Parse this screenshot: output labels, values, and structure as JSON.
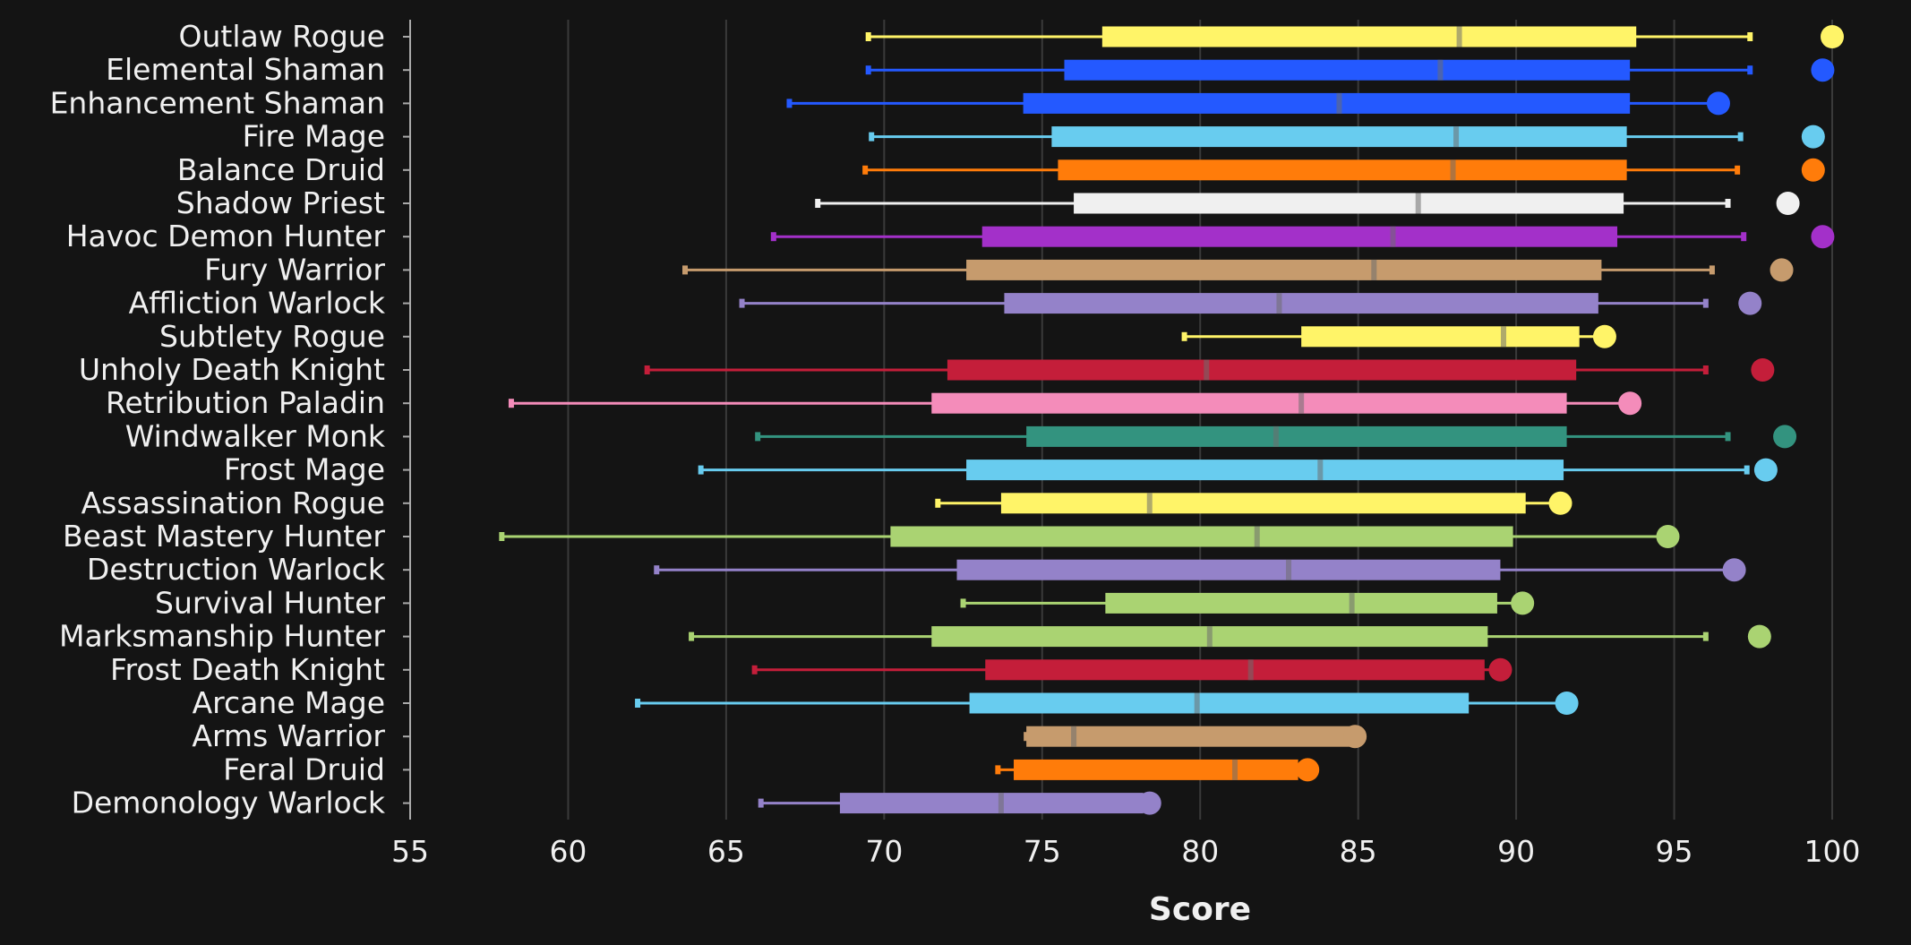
{
  "chart_data": {
    "type": "boxplot",
    "xlabel": "Score",
    "xlim": [
      55,
      100
    ],
    "xticks": [
      55,
      60,
      65,
      70,
      75,
      80,
      85,
      90,
      95,
      100
    ],
    "grid": "vertical",
    "series": [
      {
        "name": "Outlaw Rogue",
        "color": "#fff468",
        "min": 69.5,
        "q1": 76.9,
        "median": 88.2,
        "q3": 93.8,
        "max": 97.4,
        "outlier": 100.0
      },
      {
        "name": "Elemental Shaman",
        "color": "#2459ff",
        "min": 69.5,
        "q1": 75.7,
        "median": 87.6,
        "q3": 93.6,
        "max": 97.4,
        "outlier": 99.7
      },
      {
        "name": "Enhancement Shaman",
        "color": "#2459ff",
        "min": 67.0,
        "q1": 74.4,
        "median": 84.4,
        "q3": 93.6,
        "max": 96.4,
        "outlier": null
      },
      {
        "name": "Fire Mage",
        "color": "#68ccef",
        "min": 69.6,
        "q1": 75.3,
        "median": 88.1,
        "q3": 93.5,
        "max": 97.1,
        "outlier": 99.4
      },
      {
        "name": "Balance Druid",
        "color": "#ff7c0a",
        "min": 69.4,
        "q1": 75.5,
        "median": 88.0,
        "q3": 93.5,
        "max": 97.0,
        "outlier": 99.4
      },
      {
        "name": "Shadow Priest",
        "color": "#f0f0f0",
        "min": 67.9,
        "q1": 76.0,
        "median": 86.9,
        "q3": 93.4,
        "max": 96.7,
        "outlier": 98.6
      },
      {
        "name": "Havoc Demon Hunter",
        "color": "#a330c9",
        "min": 66.5,
        "q1": 73.1,
        "median": 86.1,
        "q3": 93.2,
        "max": 97.2,
        "outlier": 99.7
      },
      {
        "name": "Fury Warrior",
        "color": "#c69b6d",
        "min": 63.7,
        "q1": 72.6,
        "median": 85.5,
        "q3": 92.7,
        "max": 96.2,
        "outlier": 98.4
      },
      {
        "name": "Affliction Warlock",
        "color": "#9482c9",
        "min": 65.5,
        "q1": 73.8,
        "median": 82.5,
        "q3": 92.6,
        "max": 96.0,
        "outlier": 97.4
      },
      {
        "name": "Subtlety Rogue",
        "color": "#fff468",
        "min": 79.5,
        "q1": 83.2,
        "median": 89.6,
        "q3": 92.0,
        "max": 92.8,
        "outlier": null
      },
      {
        "name": "Unholy Death Knight",
        "color": "#c41e3a",
        "min": 62.5,
        "q1": 72.0,
        "median": 80.2,
        "q3": 91.9,
        "max": 96.0,
        "outlier": 97.8
      },
      {
        "name": "Retribution Paladin",
        "color": "#f48cba",
        "min": 58.2,
        "q1": 71.5,
        "median": 83.2,
        "q3": 91.6,
        "max": 93.6,
        "outlier": null
      },
      {
        "name": "Windwalker Monk",
        "color": "#33937f",
        "min": 66.0,
        "q1": 74.5,
        "median": 82.4,
        "q3": 91.6,
        "max": 96.7,
        "outlier": 98.5
      },
      {
        "name": "Frost Mage",
        "color": "#68ccef",
        "min": 64.2,
        "q1": 72.6,
        "median": 83.8,
        "q3": 91.5,
        "max": 97.3,
        "outlier": 97.9
      },
      {
        "name": "Assassination Rogue",
        "color": "#fff468",
        "min": 71.7,
        "q1": 73.7,
        "median": 78.4,
        "q3": 90.3,
        "max": 91.4,
        "outlier": null
      },
      {
        "name": "Beast Mastery Hunter",
        "color": "#aad372",
        "min": 57.9,
        "q1": 70.2,
        "median": 81.8,
        "q3": 89.9,
        "max": 94.8,
        "outlier": null
      },
      {
        "name": "Destruction Warlock",
        "color": "#9482c9",
        "min": 62.8,
        "q1": 72.3,
        "median": 82.8,
        "q3": 89.5,
        "max": 96.9,
        "outlier": null
      },
      {
        "name": "Survival Hunter",
        "color": "#aad372",
        "min": 72.5,
        "q1": 77.0,
        "median": 84.8,
        "q3": 89.4,
        "max": 90.2,
        "outlier": null
      },
      {
        "name": "Marksmanship Hunter",
        "color": "#aad372",
        "min": 63.9,
        "q1": 71.5,
        "median": 80.3,
        "q3": 89.1,
        "max": 96.0,
        "outlier": 97.7
      },
      {
        "name": "Frost Death Knight",
        "color": "#c41e3a",
        "min": 65.9,
        "q1": 73.2,
        "median": 81.6,
        "q3": 89.0,
        "max": 89.5,
        "outlier": null
      },
      {
        "name": "Arcane Mage",
        "color": "#68ccef",
        "min": 62.2,
        "q1": 72.7,
        "median": 79.9,
        "q3": 88.5,
        "max": 91.6,
        "outlier": null
      },
      {
        "name": "Arms Warrior",
        "color": "#c69b6d",
        "min": 74.5,
        "q1": 74.5,
        "median": 76.0,
        "q3": 84.9,
        "max": 84.9,
        "outlier": null
      },
      {
        "name": "Feral Druid",
        "color": "#ff7c0a",
        "min": 73.6,
        "q1": 74.1,
        "median": 81.1,
        "q3": 83.1,
        "max": 83.4,
        "outlier": null
      },
      {
        "name": "Demonology Warlock",
        "color": "#9482c9",
        "min": 66.1,
        "q1": 68.6,
        "median": 73.7,
        "q3": 78.2,
        "max": 78.4,
        "outlier": null
      }
    ]
  }
}
